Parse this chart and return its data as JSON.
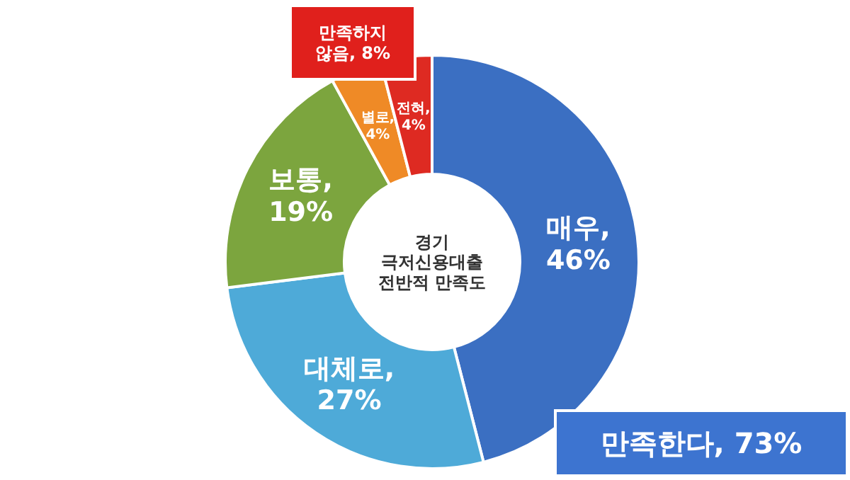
{
  "chart_data": {
    "type": "donut",
    "title": "경기 극저신용대출 전반적 만족도",
    "categories": [
      null,
      null,
      null,
      null,
      null
    ],
    "value_labels": [
      "매우, 46%",
      "대체로, 27%",
      "보통, 19%",
      "별로, 4%",
      "전혀, 4%"
    ],
    "values": [
      46,
      27,
      19,
      4,
      4
    ],
    "colors": [
      "#3b6fc2",
      "#4eaad8",
      "#7ca53e",
      "#ef8a26",
      "#de2a22"
    ],
    "annotations": [
      "만족하지 않음, 8%",
      "만족한다, 73%"
    ]
  }
}
